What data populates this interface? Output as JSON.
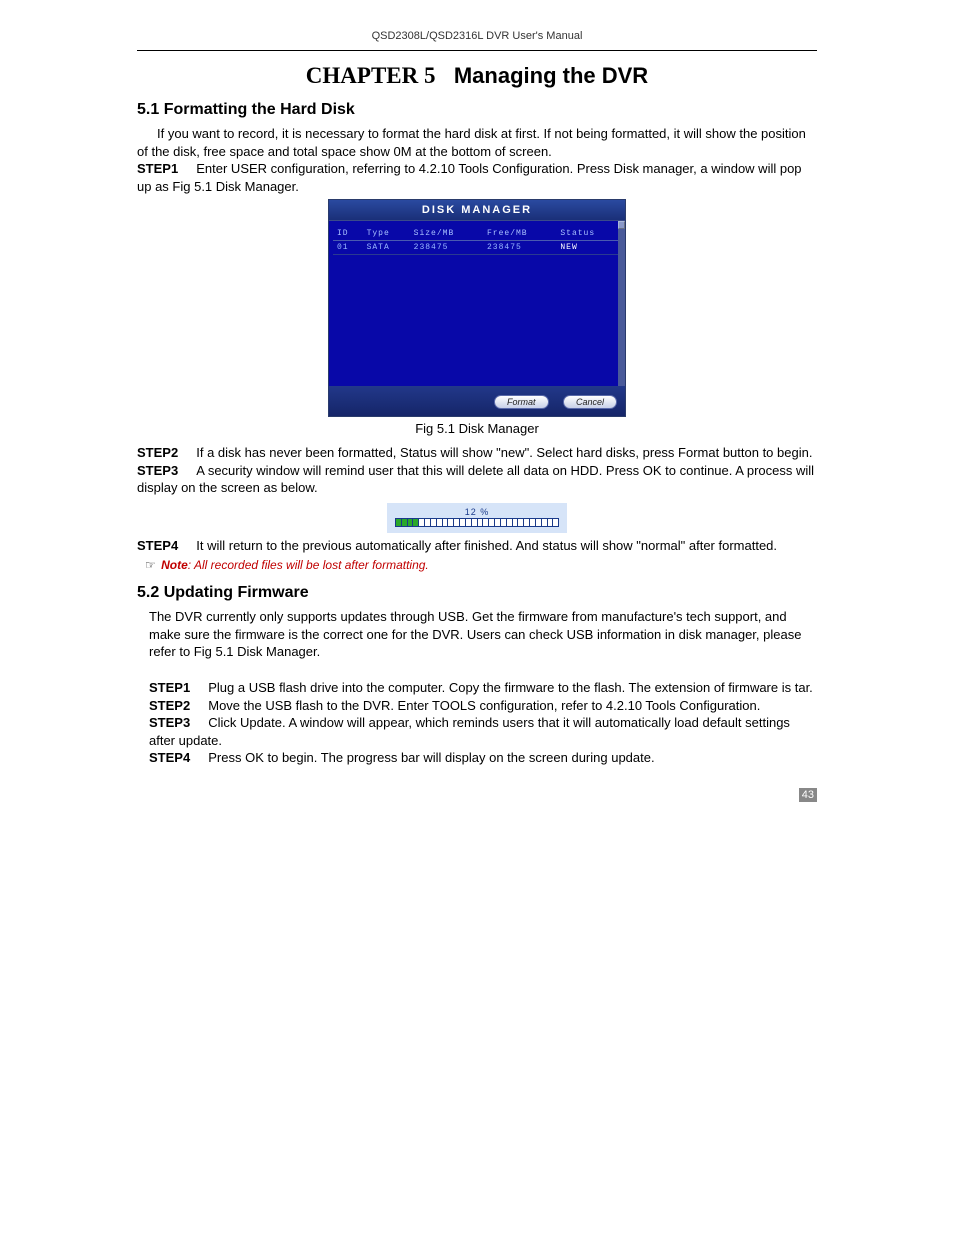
{
  "header": "QSD2308L/QSD2316L DVR User's Manual",
  "chapter": {
    "prefix": "CHAPTER 5",
    "title": "Managing the DVR"
  },
  "section1": {
    "heading": "5.1  Formatting the Hard Disk",
    "intro": "If you want to record, it is necessary to format the hard disk at first. If not being formatted, it will show the position of the disk, free space and total space show 0M at the bottom of screen.",
    "step1_label": "STEP1",
    "step1": "Enter USER configuration, referring to 4.2.10 Tools Configuration. Press Disk manager, a window will pop up as Fig 5.1 Disk Manager.",
    "fig_caption": "Fig 5.1 Disk Manager",
    "step2_label": "STEP2",
    "step2": "If a disk has never been formatted, Status will show \"new\". Select hard disks, press Format button to begin.",
    "step3_label": "STEP3",
    "step3": "A security window will remind user that this will delete all data on HDD. Press OK to continue. A process will display on the screen as below.",
    "step4_label": "STEP4",
    "step4": "It will return to the previous automatically after finished. And status will show \"normal\" after formatted.",
    "note_label": "Note",
    "note": ": All recorded files will be lost after formatting."
  },
  "disk_manager": {
    "title": "DISK MANAGER",
    "columns": [
      "ID",
      "Type",
      "Size/MB",
      "Free/MB",
      "Status"
    ],
    "rows": [
      {
        "id": "01",
        "type": "SATA",
        "size": "238475",
        "free": "238475",
        "status": "NEW"
      }
    ],
    "buttons": {
      "format": "Format",
      "cancel": "Cancel"
    },
    "colors": {
      "body_bg": "#0808a8",
      "title_bg_top": "#2a4aa0",
      "title_bg_bottom": "#1a2f78",
      "text": "#a8c0ff",
      "btn_bg": "#ffffff"
    }
  },
  "progress": {
    "label": "12  %",
    "total_segments": 28,
    "filled_segments": 4,
    "fill_color": "#2aa82a",
    "bg_color": "#d6e4f8"
  },
  "section2": {
    "heading": "5.2  Updating Firmware",
    "intro": "The DVR currently only supports updates through USB. Get the firmware from manufacture's tech support, and make sure the firmware is the correct one for the DVR. Users can check USB information in disk manager, please refer to Fig 5.1 Disk Manager.",
    "step1_label": "STEP1",
    "step1": "Plug a USB flash drive into the computer. Copy the firmware to the flash. The extension of firmware is tar.",
    "step2_label": "STEP2",
    "step2": "Move the USB flash to the DVR. Enter TOOLS configuration, refer to 4.2.10 Tools Configuration.",
    "step3_label": "STEP3",
    "step3": "Click Update. A window will appear, which reminds users that it will automatically load default settings after update.",
    "step4_label": "STEP4",
    "step4": "Press OK to begin. The progress bar will display on the screen during update."
  },
  "page_number": "43"
}
